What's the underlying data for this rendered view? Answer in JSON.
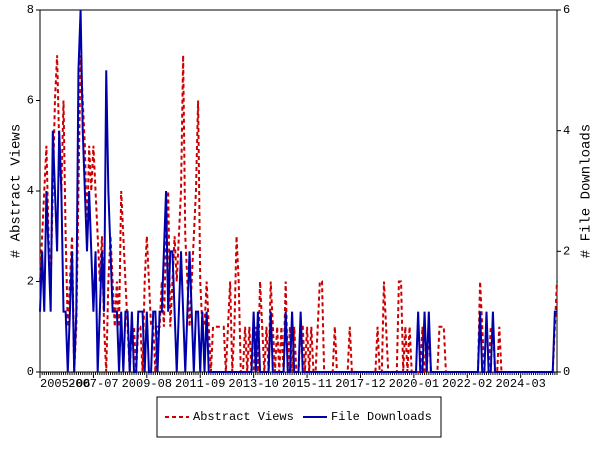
{
  "chart_data": {
    "type": "line",
    "categories": [
      "2005-06",
      null,
      null,
      null,
      null,
      null,
      null,
      null,
      null,
      null,
      null,
      null,
      null,
      null,
      null,
      null,
      null,
      null,
      null,
      null,
      null,
      null,
      null,
      null,
      null,
      "2007-07",
      null,
      null,
      null,
      null,
      null,
      null,
      null,
      null,
      null,
      null,
      null,
      null,
      null,
      null,
      null,
      null,
      null,
      null,
      null,
      null,
      null,
      null,
      null,
      null,
      "2009-08",
      null,
      null,
      null,
      null,
      null,
      null,
      null,
      null,
      null,
      null,
      null,
      null,
      null,
      null,
      null,
      null,
      null,
      null,
      null,
      null,
      null,
      null,
      null,
      null,
      "2011-09",
      null,
      null,
      null,
      null,
      null,
      null,
      null,
      null,
      null,
      null,
      null,
      null,
      null,
      null,
      null,
      null,
      null,
      null,
      null,
      null,
      null,
      null,
      null,
      null,
      "2013-10",
      null,
      null,
      null,
      null,
      null,
      null,
      null,
      null,
      null,
      null,
      null,
      null,
      null,
      null,
      null,
      null,
      null,
      null,
      null,
      null,
      null,
      null,
      null,
      null,
      "2015-11",
      null,
      null,
      null,
      null,
      null,
      null,
      null,
      null,
      null,
      null,
      null,
      null,
      null,
      null,
      null,
      null,
      null,
      null,
      null,
      null,
      null,
      null,
      null,
      null,
      "2017-12",
      null,
      null,
      null,
      null,
      null,
      null,
      null,
      null,
      null,
      null,
      null,
      null,
      null,
      null,
      null,
      null,
      null,
      null,
      null,
      null,
      null,
      null,
      null,
      null,
      "2020-01",
      null,
      null,
      null,
      null,
      null,
      null,
      null,
      null,
      null,
      null,
      null,
      null,
      null,
      null,
      null,
      null,
      null,
      null,
      null,
      null,
      null,
      null,
      null,
      null,
      "2022-02",
      null,
      null,
      null,
      null,
      null,
      null,
      null,
      null,
      null,
      null,
      null,
      null,
      null,
      null,
      null,
      null,
      null,
      null,
      null,
      null,
      null,
      null,
      null,
      null,
      "2024-03",
      null,
      null,
      null,
      null,
      null,
      null,
      null,
      null,
      null,
      null,
      null,
      null,
      null,
      null,
      null,
      null,
      null
    ],
    "series": [
      {
        "name": "Abstract Views",
        "color": "#cc0000",
        "dashed": true,
        "values": [
          2,
          3,
          4,
          5,
          3,
          2,
          4,
          6,
          7,
          5,
          4,
          6,
          3,
          1,
          2,
          3,
          0,
          1,
          4,
          7,
          6,
          5,
          3,
          5,
          4,
          5,
          4,
          3,
          2,
          3,
          1,
          0,
          2,
          3,
          2,
          1,
          2,
          1,
          4,
          3,
          2,
          1,
          0,
          1,
          1,
          0,
          1,
          1,
          0,
          2,
          3,
          2,
          1,
          1,
          0,
          1,
          1,
          2,
          1,
          3,
          4,
          1,
          2,
          3,
          2,
          3,
          4,
          7,
          3,
          2,
          1,
          2,
          3,
          4,
          6,
          2,
          1,
          1,
          2,
          1,
          0,
          1,
          1,
          1,
          1,
          1,
          1,
          0,
          1,
          2,
          0,
          1,
          3,
          2,
          0,
          0,
          1,
          0,
          1,
          0,
          0,
          1,
          0,
          2,
          1,
          0,
          1,
          0,
          2,
          1,
          0,
          1,
          0,
          1,
          0,
          2,
          0,
          1,
          0,
          1,
          0,
          0,
          1,
          1,
          0,
          1,
          0,
          1,
          0,
          0,
          1,
          2,
          2,
          0,
          0,
          0,
          0,
          0,
          1,
          0,
          0,
          0,
          0,
          0,
          0,
          1,
          0,
          0,
          0,
          0,
          0,
          0,
          0,
          0,
          0,
          0,
          0,
          0,
          1,
          0,
          0,
          2,
          1,
          0,
          0,
          0,
          0,
          0,
          2,
          2,
          0,
          1,
          0,
          1,
          0,
          0,
          0,
          0,
          0,
          1,
          0,
          0,
          1,
          0,
          0,
          0,
          0,
          1,
          1,
          1,
          0,
          0,
          0,
          0,
          0,
          0,
          0,
          0,
          0,
          0,
          0,
          0,
          0,
          0,
          0,
          0,
          2,
          1,
          0,
          0,
          0,
          1,
          1,
          0,
          0,
          1,
          0,
          0,
          0,
          0,
          0,
          0,
          0,
          0,
          0,
          0,
          0,
          0,
          0,
          0,
          0,
          0,
          0,
          0,
          0,
          0,
          0,
          0,
          0,
          0,
          0,
          1,
          2
        ]
      },
      {
        "name": "File Downloads",
        "color": "#0000aa",
        "axis": "y2",
        "values": [
          1,
          2,
          1,
          3,
          2,
          1,
          4,
          3,
          2,
          4,
          3,
          1,
          1,
          0,
          1,
          2,
          0,
          1,
          5,
          6,
          4,
          3,
          2,
          3,
          2,
          1,
          2,
          0,
          1,
          2,
          1,
          5,
          3,
          2,
          1,
          1,
          1,
          0,
          1,
          0,
          1,
          1,
          0,
          1,
          0,
          0,
          1,
          1,
          1,
          0,
          1,
          0,
          0,
          1,
          1,
          0,
          1,
          1,
          2,
          3,
          1,
          2,
          2,
          1,
          0,
          1,
          2,
          1,
          0,
          1,
          2,
          1,
          0,
          1,
          1,
          0,
          1,
          0,
          1,
          0,
          0,
          0,
          0,
          0,
          0,
          0,
          0,
          0,
          0,
          0,
          0,
          0,
          0,
          0,
          0,
          0,
          0,
          0,
          0,
          0,
          1,
          0,
          1,
          0,
          0,
          0,
          0,
          0,
          1,
          0,
          0,
          0,
          0,
          0,
          0,
          1,
          0,
          0,
          1,
          0,
          0,
          0,
          1,
          0,
          0,
          0,
          0,
          0,
          0,
          0,
          0,
          0,
          0,
          0,
          0,
          0,
          0,
          0,
          0,
          0,
          0,
          0,
          0,
          0,
          0,
          0,
          0,
          0,
          0,
          0,
          0,
          0,
          0,
          0,
          0,
          0,
          0,
          0,
          0,
          0,
          0,
          0,
          0,
          0,
          0,
          0,
          0,
          0,
          0,
          0,
          0,
          0,
          0,
          0,
          0,
          0,
          0,
          1,
          0,
          0,
          1,
          0,
          1,
          0,
          0,
          0,
          0,
          0,
          0,
          0,
          0,
          0,
          0,
          0,
          0,
          0,
          0,
          0,
          0,
          0,
          0,
          0,
          0,
          0,
          0,
          0,
          1,
          0,
          0,
          1,
          0,
          0,
          1,
          0,
          0,
          0,
          0,
          0,
          0,
          0,
          0,
          0,
          0,
          0,
          0,
          0,
          0,
          0,
          0,
          0,
          0,
          0,
          0,
          0,
          0,
          0,
          0,
          0,
          0,
          0,
          0,
          1,
          1
        ]
      }
    ],
    "ylabel": "# Abstract Views",
    "y2label": "# File Downloads",
    "ylim": [
      0,
      8
    ],
    "yticks": [
      0,
      2,
      4,
      6,
      8
    ],
    "y2lim": [
      0,
      6
    ],
    "y2ticks": [
      0,
      2,
      4,
      6
    ],
    "legend": "bottom"
  }
}
